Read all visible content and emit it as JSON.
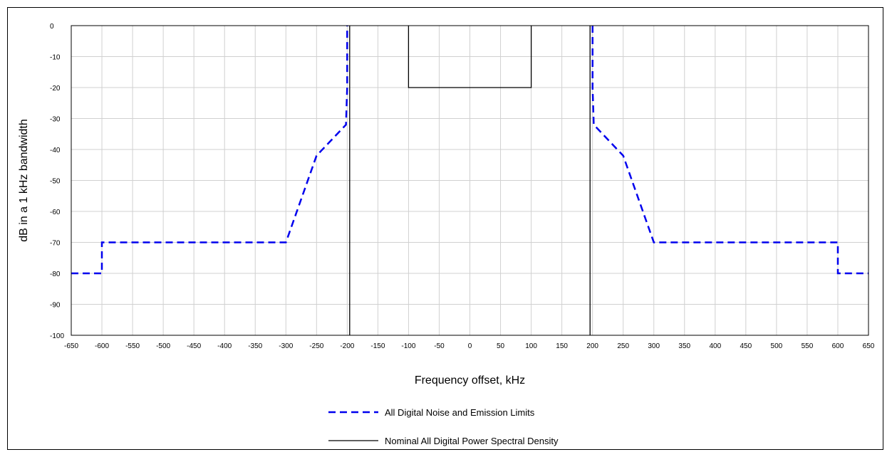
{
  "chart_data": {
    "type": "line",
    "xlabel": "Frequency offset, kHz",
    "ylabel": "dB in a 1 kHz bandwidth",
    "xlim": [
      -650,
      650
    ],
    "ylim": [
      -100,
      0
    ],
    "xticks": [
      -650,
      -600,
      -550,
      -500,
      -450,
      -400,
      -350,
      -300,
      -250,
      -200,
      -150,
      -100,
      -50,
      0,
      50,
      100,
      150,
      200,
      250,
      300,
      350,
      400,
      450,
      500,
      550,
      600,
      650
    ],
    "yticks": [
      0,
      -10,
      -20,
      -30,
      -40,
      -50,
      -60,
      -70,
      -80,
      -90,
      -100
    ],
    "grid": true,
    "legend_position": "bottom-center",
    "series": [
      {
        "name": "All Digital Noise and Emission Limits",
        "style": "dashed",
        "color": "#0000ee",
        "x": [
          -650,
          -600,
          -600,
          -300,
          -250,
          -202,
          -200,
          -200,
          null,
          200,
          200,
          202,
          250,
          300,
          600,
          600,
          650
        ],
        "y": [
          -80,
          -80,
          -70,
          -70,
          -42,
          -32,
          -20,
          0,
          null,
          0,
          -20,
          -32,
          -42,
          -70,
          -70,
          -80,
          -80
        ]
      },
      {
        "name": "Nominal All Digital Power Spectral Density",
        "style": "solid",
        "color": "#000000",
        "x": [
          -196,
          -196,
          null,
          196,
          196,
          null,
          -100,
          -100,
          100,
          100
        ],
        "y": [
          0,
          -100,
          null,
          0,
          -100,
          null,
          0,
          -20,
          -20,
          0
        ]
      }
    ]
  }
}
